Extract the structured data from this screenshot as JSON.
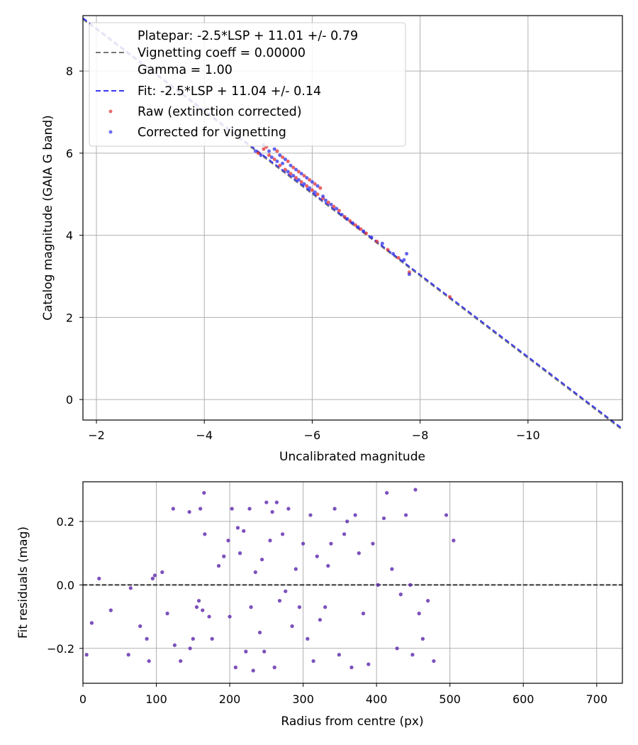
{
  "chart_data": [
    {
      "type": "scatter",
      "panel": "calibration",
      "xlabel": "Uncalibrated magnitude",
      "ylabel": "Catalog magnitude (GAIA G band)",
      "xlim": [
        -1.75,
        -11.75
      ],
      "ylim": [
        9.35,
        -0.5
      ],
      "x_ticks": [
        -2,
        -4,
        -6,
        -8,
        -10
      ],
      "y_ticks": [
        0,
        2,
        4,
        6,
        8
      ],
      "grid": true,
      "legend_position": "upper-left",
      "legend": {
        "platepar_line1": "Platepar: -2.5*LSP + 11.01 +/- 0.79",
        "platepar_line2": "Vignetting coeff = 0.00000",
        "platepar_line3": "Gamma = 1.00",
        "fit": "Fit: -2.5*LSP + 11.04 +/- 0.14",
        "raw": "Raw (extinction corrected)",
        "corrected": "Corrected for vignetting"
      },
      "lines": [
        {
          "name": "Platepar",
          "slope_per_mag": 1.0,
          "intercept": 11.01,
          "color": "#777777",
          "style": "dashed"
        },
        {
          "name": "Fit",
          "slope_per_mag": 1.0,
          "intercept": 11.04,
          "color": "#3a3af0",
          "style": "dashed"
        }
      ],
      "series": [
        {
          "name": "Raw (extinction corrected)",
          "color": "#e03030",
          "points": [
            [
              -5.0,
              6.0
            ],
            [
              -5.1,
              6.1
            ],
            [
              -5.2,
              5.95
            ],
            [
              -5.15,
              6.15
            ],
            [
              -5.3,
              5.85
            ],
            [
              -5.35,
              6.05
            ],
            [
              -5.4,
              5.7
            ],
            [
              -5.45,
              5.9
            ],
            [
              -5.5,
              5.6
            ],
            [
              -5.55,
              5.8
            ],
            [
              -5.6,
              5.5
            ],
            [
              -5.65,
              5.65
            ],
            [
              -5.7,
              5.4
            ],
            [
              -5.75,
              5.55
            ],
            [
              -5.8,
              5.3
            ],
            [
              -5.85,
              5.45
            ],
            [
              -5.9,
              5.2
            ],
            [
              -5.95,
              5.35
            ],
            [
              -6.0,
              5.1
            ],
            [
              -6.05,
              5.25
            ],
            [
              -6.1,
              5.0
            ],
            [
              -6.15,
              5.15
            ],
            [
              -6.2,
              4.9
            ],
            [
              -6.3,
              4.8
            ],
            [
              -6.4,
              4.7
            ],
            [
              -6.5,
              4.6
            ],
            [
              -6.6,
              4.45
            ],
            [
              -6.7,
              4.35
            ],
            [
              -6.8,
              4.25
            ],
            [
              -6.9,
              4.15
            ],
            [
              -7.0,
              4.05
            ],
            [
              -7.2,
              3.85
            ],
            [
              -7.4,
              3.65
            ],
            [
              -7.6,
              3.45
            ],
            [
              -7.8,
              3.1
            ],
            [
              -8.55,
              2.5
            ]
          ]
        },
        {
          "name": "Corrected for vignetting",
          "color": "#3030e8",
          "points": [
            [
              -4.95,
              6.05
            ],
            [
              -5.05,
              5.95
            ],
            [
              -5.1,
              6.2
            ],
            [
              -5.2,
              6.05
            ],
            [
              -5.25,
              5.9
            ],
            [
              -5.3,
              6.1
            ],
            [
              -5.35,
              5.8
            ],
            [
              -5.4,
              5.95
            ],
            [
              -5.45,
              5.75
            ],
            [
              -5.5,
              5.85
            ],
            [
              -5.55,
              5.55
            ],
            [
              -5.6,
              5.7
            ],
            [
              -5.65,
              5.45
            ],
            [
              -5.7,
              5.6
            ],
            [
              -5.75,
              5.35
            ],
            [
              -5.8,
              5.5
            ],
            [
              -5.85,
              5.25
            ],
            [
              -5.9,
              5.4
            ],
            [
              -5.95,
              5.15
            ],
            [
              -6.0,
              5.3
            ],
            [
              -6.05,
              5.05
            ],
            [
              -6.1,
              5.2
            ],
            [
              -6.2,
              4.95
            ],
            [
              -6.25,
              4.85
            ],
            [
              -6.35,
              4.75
            ],
            [
              -6.45,
              4.65
            ],
            [
              -6.55,
              4.5
            ],
            [
              -6.65,
              4.4
            ],
            [
              -6.75,
              4.3
            ],
            [
              -6.85,
              4.2
            ],
            [
              -6.95,
              4.1
            ],
            [
              -7.1,
              3.95
            ],
            [
              -7.3,
              3.8
            ],
            [
              -7.5,
              3.55
            ],
            [
              -7.7,
              3.4
            ],
            [
              -7.75,
              3.55
            ],
            [
              -7.8,
              3.05
            ]
          ]
        }
      ]
    },
    {
      "type": "scatter",
      "panel": "residuals",
      "xlabel": "Radius from centre (px)",
      "ylabel": "Fit residuals (mag)",
      "xlim": [
        0,
        735
      ],
      "ylim": [
        -0.31,
        0.325
      ],
      "x_ticks": [
        0,
        100,
        200,
        300,
        400,
        500,
        600,
        700
      ],
      "y_ticks": [
        -0.2,
        0.0,
        0.2
      ],
      "y_tick_labels": [
        "−0.2",
        "0.0",
        "0.2"
      ],
      "grid": true,
      "reference_line": {
        "y": 0.0,
        "style": "dashed",
        "color": "#333333"
      },
      "series": [
        {
          "name": "Raw (extinction corrected)",
          "color": "#e03030",
          "points": [
            [
              5,
              -0.22
            ],
            [
              12,
              -0.12
            ],
            [
              22,
              0.02
            ],
            [
              38,
              -0.08
            ],
            [
              62,
              -0.22
            ],
            [
              65,
              -0.01
            ],
            [
              78,
              -0.13
            ],
            [
              87,
              -0.17
            ],
            [
              90,
              -0.24
            ],
            [
              95,
              0.02
            ],
            [
              98,
              0.03
            ],
            [
              108,
              0.04
            ],
            [
              115,
              -0.09
            ],
            [
              123,
              0.24
            ],
            [
              125,
              -0.19
            ],
            [
              133,
              -0.24
            ],
            [
              145,
              0.23
            ],
            [
              146,
              -0.2
            ],
            [
              150,
              -0.17
            ],
            [
              155,
              -0.07
            ],
            [
              158,
              -0.05
            ],
            [
              160,
              0.24
            ],
            [
              163,
              -0.08
            ],
            [
              165,
              0.29
            ],
            [
              166,
              0.16
            ],
            [
              172,
              -0.1
            ],
            [
              176,
              -0.17
            ],
            [
              185,
              0.06
            ],
            [
              192,
              0.09
            ],
            [
              198,
              0.14
            ],
            [
              200,
              -0.1
            ],
            [
              203,
              0.24
            ],
            [
              208,
              -0.26
            ],
            [
              211,
              0.18
            ],
            [
              214,
              0.1
            ],
            [
              219,
              0.17
            ],
            [
              222,
              -0.21
            ],
            [
              227,
              0.24
            ],
            [
              229,
              -0.07
            ],
            [
              232,
              -0.27
            ],
            [
              235,
              0.04
            ],
            [
              241,
              -0.15
            ],
            [
              244,
              0.08
            ],
            [
              247,
              -0.21
            ],
            [
              250,
              0.26
            ],
            [
              255,
              0.14
            ],
            [
              258,
              0.23
            ],
            [
              261,
              -0.26
            ],
            [
              264,
              0.26
            ],
            [
              268,
              -0.05
            ],
            [
              272,
              0.16
            ],
            [
              276,
              -0.02
            ],
            [
              280,
              0.24
            ],
            [
              285,
              -0.13
            ],
            [
              290,
              0.05
            ],
            [
              295,
              -0.07
            ],
            [
              300,
              0.13
            ],
            [
              306,
              -0.17
            ],
            [
              310,
              0.22
            ],
            [
              314,
              -0.24
            ],
            [
              319,
              0.09
            ],
            [
              323,
              -0.11
            ],
            [
              330,
              -0.07
            ],
            [
              334,
              0.06
            ],
            [
              338,
              0.13
            ],
            [
              343,
              0.24
            ],
            [
              349,
              -0.22
            ],
            [
              356,
              0.16
            ],
            [
              360,
              0.2
            ],
            [
              366,
              -0.26
            ],
            [
              371,
              0.22
            ],
            [
              376,
              0.1
            ],
            [
              382,
              -0.09
            ],
            [
              389,
              -0.25
            ],
            [
              395,
              0.13
            ],
            [
              402,
              0.0
            ],
            [
              410,
              0.21
            ],
            [
              414,
              0.29
            ],
            [
              421,
              0.05
            ],
            [
              428,
              -0.2
            ],
            [
              433,
              -0.03
            ],
            [
              440,
              0.22
            ],
            [
              446,
              0.0
            ],
            [
              449,
              -0.22
            ],
            [
              453,
              0.3
            ],
            [
              458,
              -0.09
            ],
            [
              463,
              -0.17
            ],
            [
              470,
              -0.05
            ],
            [
              478,
              -0.24
            ],
            [
              495,
              0.22
            ],
            [
              505,
              0.14
            ]
          ]
        },
        {
          "name": "Corrected for vignetting",
          "color": "#3030e8",
          "points": [
            [
              5,
              -0.22
            ],
            [
              12,
              -0.12
            ],
            [
              22,
              0.02
            ],
            [
              38,
              -0.08
            ],
            [
              62,
              -0.22
            ],
            [
              65,
              -0.01
            ],
            [
              78,
              -0.13
            ],
            [
              87,
              -0.17
            ],
            [
              90,
              -0.24
            ],
            [
              95,
              0.02
            ],
            [
              98,
              0.03
            ],
            [
              108,
              0.04
            ],
            [
              115,
              -0.09
            ],
            [
              123,
              0.24
            ],
            [
              125,
              -0.19
            ],
            [
              133,
              -0.24
            ],
            [
              145,
              0.23
            ],
            [
              146,
              -0.2
            ],
            [
              150,
              -0.17
            ],
            [
              155,
              -0.07
            ],
            [
              158,
              -0.05
            ],
            [
              160,
              0.24
            ],
            [
              163,
              -0.08
            ],
            [
              165,
              0.29
            ],
            [
              166,
              0.16
            ],
            [
              172,
              -0.1
            ],
            [
              176,
              -0.17
            ],
            [
              185,
              0.06
            ],
            [
              192,
              0.09
            ],
            [
              198,
              0.14
            ],
            [
              200,
              -0.1
            ],
            [
              203,
              0.24
            ],
            [
              208,
              -0.26
            ],
            [
              211,
              0.18
            ],
            [
              214,
              0.1
            ],
            [
              219,
              0.17
            ],
            [
              222,
              -0.21
            ],
            [
              227,
              0.24
            ],
            [
              229,
              -0.07
            ],
            [
              232,
              -0.27
            ],
            [
              235,
              0.04
            ],
            [
              241,
              -0.15
            ],
            [
              244,
              0.08
            ],
            [
              247,
              -0.21
            ],
            [
              250,
              0.26
            ],
            [
              255,
              0.14
            ],
            [
              258,
              0.23
            ],
            [
              261,
              -0.26
            ],
            [
              264,
              0.26
            ],
            [
              268,
              -0.05
            ],
            [
              272,
              0.16
            ],
            [
              276,
              -0.02
            ],
            [
              280,
              0.24
            ],
            [
              285,
              -0.13
            ],
            [
              290,
              0.05
            ],
            [
              295,
              -0.07
            ],
            [
              300,
              0.13
            ],
            [
              306,
              -0.17
            ],
            [
              310,
              0.22
            ],
            [
              314,
              -0.24
            ],
            [
              319,
              0.09
            ],
            [
              323,
              -0.11
            ],
            [
              330,
              -0.07
            ],
            [
              334,
              0.06
            ],
            [
              338,
              0.13
            ],
            [
              343,
              0.24
            ],
            [
              349,
              -0.22
            ],
            [
              356,
              0.16
            ],
            [
              360,
              0.2
            ],
            [
              366,
              -0.26
            ],
            [
              371,
              0.22
            ],
            [
              376,
              0.1
            ],
            [
              382,
              -0.09
            ],
            [
              389,
              -0.25
            ],
            [
              395,
              0.13
            ],
            [
              402,
              0.0
            ],
            [
              410,
              0.21
            ],
            [
              414,
              0.29
            ],
            [
              421,
              0.05
            ],
            [
              428,
              -0.2
            ],
            [
              433,
              -0.03
            ],
            [
              440,
              0.22
            ],
            [
              446,
              0.0
            ],
            [
              449,
              -0.22
            ],
            [
              453,
              0.3
            ],
            [
              458,
              -0.09
            ],
            [
              463,
              -0.17
            ],
            [
              470,
              -0.05
            ],
            [
              478,
              -0.24
            ],
            [
              495,
              0.22
            ],
            [
              505,
              0.14
            ]
          ]
        }
      ]
    }
  ]
}
